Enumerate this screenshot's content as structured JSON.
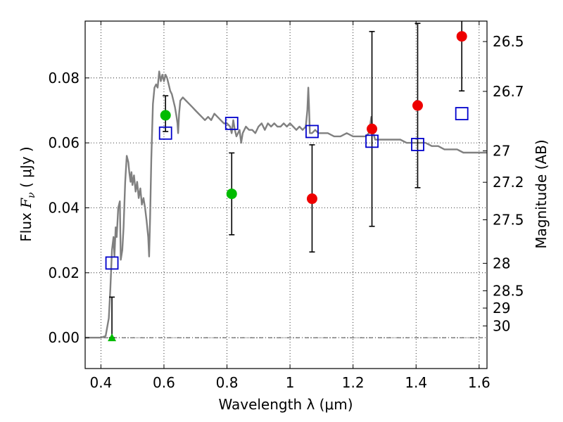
{
  "chart_data": {
    "type": "scatter",
    "xlabel": "Wavelength  λ (μm)",
    "ylabel_parts": {
      "pre": "Flux  ",
      "sym": "F",
      "sub": "ν",
      "post": "  ( μJy )"
    },
    "ylabel_right": "Magnitude (AB)",
    "xlim": [
      0.35,
      1.625
    ],
    "ylim": [
      -0.0095,
      0.0975
    ],
    "grid": true,
    "x_ticks": [
      {
        "v": 0.4,
        "label": "0.4"
      },
      {
        "v": 0.6,
        "label": "0.6"
      },
      {
        "v": 0.8,
        "label": "0.8"
      },
      {
        "v": 1.0,
        "label": "1"
      },
      {
        "v": 1.2,
        "label": "1.2"
      },
      {
        "v": 1.4,
        "label": "1.4"
      },
      {
        "v": 1.6,
        "label": "1.6"
      }
    ],
    "y_ticks": [
      {
        "v": 0.0,
        "label": "0.00"
      },
      {
        "v": 0.02,
        "label": "0.02"
      },
      {
        "v": 0.04,
        "label": "0.04"
      },
      {
        "v": 0.06,
        "label": "0.06"
      },
      {
        "v": 0.08,
        "label": "0.08"
      }
    ],
    "mag_ticks": [
      {
        "v": 26.5,
        "label": "26.5"
      },
      {
        "v": 26.7,
        "label": "26.7"
      },
      {
        "v": 27,
        "label": "27"
      },
      {
        "v": 27.2,
        "label": "27.2"
      },
      {
        "v": 27.5,
        "label": "27.5"
      },
      {
        "v": 28,
        "label": "28"
      },
      {
        "v": 28.5,
        "label": "28.5"
      },
      {
        "v": 29,
        "label": "29"
      },
      {
        "v": 30,
        "label": "30"
      }
    ],
    "sed_model": {
      "color": "#808080",
      "points": [
        [
          0.35,
          0.0
        ],
        [
          0.4,
          0.0
        ],
        [
          0.415,
          0.0005
        ],
        [
          0.425,
          0.006
        ],
        [
          0.43,
          0.015
        ],
        [
          0.435,
          0.027
        ],
        [
          0.44,
          0.031
        ],
        [
          0.443,
          0.025
        ],
        [
          0.447,
          0.034
        ],
        [
          0.45,
          0.031
        ],
        [
          0.455,
          0.04
        ],
        [
          0.46,
          0.042
        ],
        [
          0.463,
          0.024
        ],
        [
          0.468,
          0.027
        ],
        [
          0.472,
          0.034
        ],
        [
          0.477,
          0.048
        ],
        [
          0.482,
          0.056
        ],
        [
          0.487,
          0.054
        ],
        [
          0.49,
          0.051
        ],
        [
          0.494,
          0.048
        ],
        [
          0.497,
          0.051
        ],
        [
          0.5,
          0.047
        ],
        [
          0.505,
          0.05
        ],
        [
          0.51,
          0.045
        ],
        [
          0.515,
          0.048
        ],
        [
          0.52,
          0.043
        ],
        [
          0.525,
          0.046
        ],
        [
          0.53,
          0.041
        ],
        [
          0.535,
          0.043
        ],
        [
          0.54,
          0.04
        ],
        [
          0.545,
          0.036
        ],
        [
          0.55,
          0.031
        ],
        [
          0.553,
          0.025
        ],
        [
          0.556,
          0.037
        ],
        [
          0.56,
          0.055
        ],
        [
          0.565,
          0.072
        ],
        [
          0.57,
          0.077
        ],
        [
          0.575,
          0.078
        ],
        [
          0.58,
          0.077
        ],
        [
          0.585,
          0.082
        ],
        [
          0.59,
          0.079
        ],
        [
          0.595,
          0.081
        ],
        [
          0.6,
          0.079
        ],
        [
          0.605,
          0.081
        ],
        [
          0.61,
          0.08
        ],
        [
          0.615,
          0.078
        ],
        [
          0.62,
          0.076
        ],
        [
          0.625,
          0.075
        ],
        [
          0.63,
          0.073
        ],
        [
          0.635,
          0.071
        ],
        [
          0.64,
          0.068
        ],
        [
          0.643,
          0.066
        ],
        [
          0.645,
          0.063
        ],
        [
          0.648,
          0.069
        ],
        [
          0.652,
          0.073
        ],
        [
          0.66,
          0.074
        ],
        [
          0.67,
          0.073
        ],
        [
          0.68,
          0.072
        ],
        [
          0.69,
          0.071
        ],
        [
          0.7,
          0.07
        ],
        [
          0.71,
          0.069
        ],
        [
          0.72,
          0.068
        ],
        [
          0.73,
          0.067
        ],
        [
          0.74,
          0.068
        ],
        [
          0.75,
          0.067
        ],
        [
          0.76,
          0.069
        ],
        [
          0.77,
          0.068
        ],
        [
          0.78,
          0.067
        ],
        [
          0.79,
          0.066
        ],
        [
          0.8,
          0.066
        ],
        [
          0.81,
          0.065
        ],
        [
          0.815,
          0.063
        ],
        [
          0.82,
          0.067
        ],
        [
          0.825,
          0.064
        ],
        [
          0.83,
          0.062
        ],
        [
          0.84,
          0.064
        ],
        [
          0.845,
          0.06
        ],
        [
          0.85,
          0.063
        ],
        [
          0.86,
          0.065
        ],
        [
          0.87,
          0.064
        ],
        [
          0.88,
          0.064
        ],
        [
          0.89,
          0.063
        ],
        [
          0.9,
          0.065
        ],
        [
          0.91,
          0.066
        ],
        [
          0.92,
          0.064
        ],
        [
          0.93,
          0.066
        ],
        [
          0.94,
          0.065
        ],
        [
          0.95,
          0.066
        ],
        [
          0.96,
          0.065
        ],
        [
          0.97,
          0.065
        ],
        [
          0.98,
          0.066
        ],
        [
          0.99,
          0.065
        ],
        [
          1.0,
          0.066
        ],
        [
          1.01,
          0.065
        ],
        [
          1.02,
          0.064
        ],
        [
          1.03,
          0.065
        ],
        [
          1.04,
          0.064
        ],
        [
          1.05,
          0.065
        ],
        [
          1.055,
          0.07
        ],
        [
          1.058,
          0.077
        ],
        [
          1.06,
          0.072
        ],
        [
          1.063,
          0.063
        ],
        [
          1.07,
          0.063
        ],
        [
          1.08,
          0.064
        ],
        [
          1.09,
          0.063
        ],
        [
          1.1,
          0.063
        ],
        [
          1.12,
          0.063
        ],
        [
          1.14,
          0.062
        ],
        [
          1.16,
          0.062
        ],
        [
          1.18,
          0.063
        ],
        [
          1.2,
          0.062
        ],
        [
          1.22,
          0.062
        ],
        [
          1.24,
          0.062
        ],
        [
          1.25,
          0.063
        ],
        [
          1.255,
          0.066
        ],
        [
          1.258,
          0.068
        ],
        [
          1.262,
          0.064
        ],
        [
          1.27,
          0.061
        ],
        [
          1.29,
          0.061
        ],
        [
          1.31,
          0.061
        ],
        [
          1.33,
          0.061
        ],
        [
          1.35,
          0.061
        ],
        [
          1.37,
          0.06
        ],
        [
          1.39,
          0.06
        ],
        [
          1.41,
          0.06
        ],
        [
          1.43,
          0.06
        ],
        [
          1.45,
          0.059
        ],
        [
          1.47,
          0.059
        ],
        [
          1.49,
          0.058
        ],
        [
          1.51,
          0.058
        ],
        [
          1.53,
          0.058
        ],
        [
          1.55,
          0.057
        ],
        [
          1.57,
          0.057
        ],
        [
          1.59,
          0.057
        ],
        [
          1.61,
          0.057
        ],
        [
          1.625,
          0.057
        ]
      ]
    },
    "model_photometry": {
      "color": "#0000cc",
      "points": [
        [
          0.435,
          0.023
        ],
        [
          0.605,
          0.063
        ],
        [
          0.815,
          0.066
        ],
        [
          1.07,
          0.0635
        ],
        [
          1.26,
          0.0605
        ],
        [
          1.405,
          0.0595
        ],
        [
          1.545,
          0.069
        ]
      ]
    },
    "observed": [
      {
        "x": 0.435,
        "y": 0.0,
        "lo": 0.0,
        "hi": 0.0125,
        "color": "#00bb00",
        "marker": "triangle"
      },
      {
        "x": 0.605,
        "y": 0.0685,
        "lo": 0.0635,
        "hi": 0.0745,
        "color": "#00bb00",
        "marker": "circle"
      },
      {
        "x": 0.815,
        "y": 0.0443,
        "lo": 0.0317,
        "hi": 0.0569,
        "color": "#00bb00",
        "marker": "circle"
      },
      {
        "x": 1.07,
        "y": 0.0428,
        "lo": 0.0264,
        "hi": 0.0594,
        "color": "#ee0000",
        "marker": "circle"
      },
      {
        "x": 1.26,
        "y": 0.0643,
        "lo": 0.0343,
        "hi": 0.0943,
        "color": "#ee0000",
        "marker": "circle"
      },
      {
        "x": 1.405,
        "y": 0.0715,
        "lo": 0.0462,
        "hi": 0.0968,
        "color": "#ee0000",
        "marker": "circle"
      },
      {
        "x": 1.545,
        "y": 0.0928,
        "lo": 0.076,
        "hi": 0.0975,
        "color": "#ee0000",
        "marker": "circle"
      }
    ],
    "zero_line_color": "#000000"
  }
}
